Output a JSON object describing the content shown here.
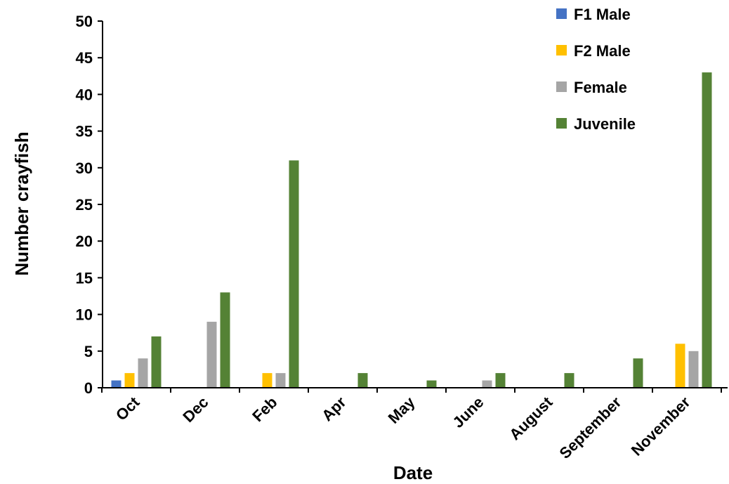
{
  "chart_data": {
    "type": "bar",
    "xlabel": "Date",
    "ylabel": "Number crayfish",
    "ylim": [
      0,
      50
    ],
    "ytick_step": 5,
    "grid": false,
    "legend_position": "top-right",
    "categories": [
      "Oct",
      "Dec",
      "Feb",
      "Apr",
      "May",
      "June",
      "August",
      "September",
      "November"
    ],
    "series": [
      {
        "name": "F1 Male",
        "color": "#4472C4",
        "values": [
          1,
          0,
          0,
          0,
          0,
          0,
          0,
          0,
          0
        ]
      },
      {
        "name": "F2 Male",
        "color": "#FFC000",
        "values": [
          2,
          0,
          2,
          0,
          0,
          0,
          0,
          0,
          6
        ]
      },
      {
        "name": "Female",
        "color": "#A5A5A5",
        "values": [
          4,
          9,
          2,
          0,
          0,
          1,
          0,
          0,
          5
        ]
      },
      {
        "name": "Juvenile",
        "color": "#548235",
        "values": [
          7,
          13,
          31,
          2,
          1,
          2,
          2,
          4,
          43
        ]
      }
    ]
  }
}
